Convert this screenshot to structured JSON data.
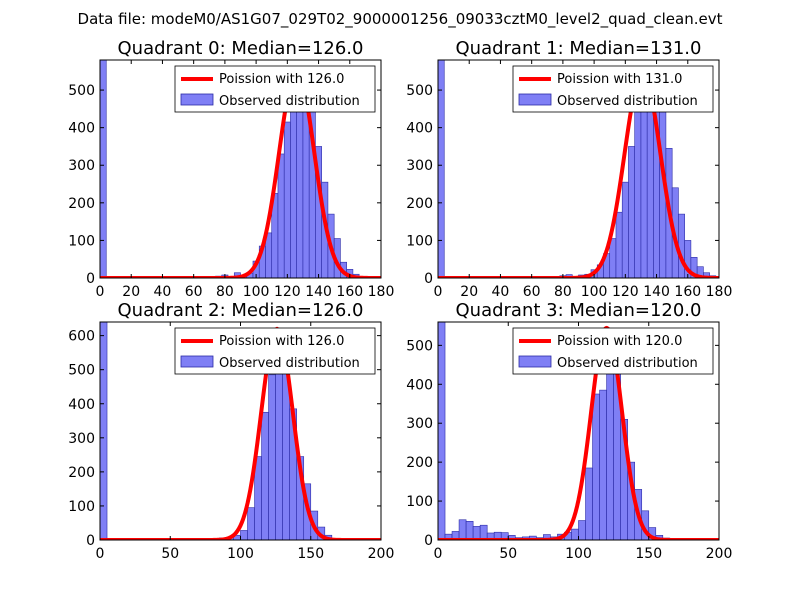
{
  "figure": {
    "suptitle": "Data file: modeM0/AS1G07_029T02_9000001256_09033cztM0_level2_quad_clean.evt"
  },
  "colors": {
    "fit": "#ff0000",
    "bar_fill": "#7f7ff5",
    "bar_edge": "#2b2ba6",
    "axes": "#000000"
  },
  "chart_data": [
    {
      "type": "bar",
      "title": "Quadrant 0: Median=126.0",
      "xlim": [
        0,
        180
      ],
      "ylim": [
        0,
        580
      ],
      "xticks": [
        0,
        20,
        40,
        60,
        80,
        100,
        120,
        140,
        160,
        180
      ],
      "yticks": [
        0,
        100,
        200,
        300,
        400,
        500
      ],
      "legend": [
        "Poission with 126.0",
        "Observed distribution"
      ],
      "legend_loc": "upper right",
      "median": 126.0,
      "fit_scale": 553,
      "bin_width": 4,
      "bins": [
        [
          0,
          580
        ],
        [
          70,
          3
        ],
        [
          74,
          5
        ],
        [
          78,
          8
        ],
        [
          82,
          4
        ],
        [
          86,
          14
        ],
        [
          90,
          7
        ],
        [
          94,
          13
        ],
        [
          98,
          45
        ],
        [
          102,
          85
        ],
        [
          106,
          120
        ],
        [
          110,
          225
        ],
        [
          114,
          330
        ],
        [
          118,
          415
        ],
        [
          122,
          490
        ],
        [
          126,
          510
        ],
        [
          130,
          500
        ],
        [
          134,
          460
        ],
        [
          138,
          350
        ],
        [
          142,
          255
        ],
        [
          146,
          170
        ],
        [
          150,
          105
        ],
        [
          154,
          42
        ],
        [
          158,
          23
        ],
        [
          162,
          10
        ],
        [
          166,
          4
        ],
        [
          170,
          2
        ]
      ]
    },
    {
      "type": "bar",
      "title": "Quadrant 1: Median=131.0",
      "xlim": [
        0,
        180
      ],
      "ylim": [
        0,
        580
      ],
      "xticks": [
        0,
        20,
        40,
        60,
        80,
        100,
        120,
        140,
        160,
        180
      ],
      "yticks": [
        0,
        100,
        200,
        300,
        400,
        500
      ],
      "legend": [
        "Poission with 131.0",
        "Observed distribution"
      ],
      "legend_loc": "upper right",
      "median": 131.0,
      "fit_scale": 548,
      "bin_width": 4,
      "bins": [
        [
          0,
          580
        ],
        [
          74,
          4
        ],
        [
          78,
          6
        ],
        [
          82,
          9
        ],
        [
          86,
          4
        ],
        [
          90,
          8
        ],
        [
          94,
          10
        ],
        [
          98,
          22
        ],
        [
          102,
          35
        ],
        [
          106,
          65
        ],
        [
          110,
          105
        ],
        [
          114,
          175
        ],
        [
          118,
          255
        ],
        [
          122,
          350
        ],
        [
          126,
          470
        ],
        [
          130,
          520
        ],
        [
          134,
          515
        ],
        [
          138,
          490
        ],
        [
          142,
          445
        ],
        [
          146,
          345
        ],
        [
          150,
          240
        ],
        [
          154,
          170
        ],
        [
          158,
          100
        ],
        [
          162,
          55
        ],
        [
          166,
          30
        ],
        [
          170,
          14
        ],
        [
          174,
          6
        ]
      ]
    },
    {
      "type": "bar",
      "title": "Quadrant 2: Median=126.0",
      "xlim": [
        0,
        200
      ],
      "ylim": [
        0,
        640
      ],
      "xticks": [
        0,
        50,
        100,
        150,
        200
      ],
      "yticks": [
        0,
        100,
        200,
        300,
        400,
        500,
        600
      ],
      "legend": [
        "Poission with 126.0",
        "Observed distribution"
      ],
      "legend_loc": "upper right",
      "median": 126.0,
      "fit_scale": 620,
      "bin_width": 5,
      "bins": [
        [
          0,
          640
        ],
        [
          75,
          3
        ],
        [
          80,
          4
        ],
        [
          85,
          6
        ],
        [
          90,
          8
        ],
        [
          95,
          14
        ],
        [
          100,
          28
        ],
        [
          105,
          95
        ],
        [
          110,
          245
        ],
        [
          115,
          375
        ],
        [
          120,
          485
        ],
        [
          125,
          570
        ],
        [
          130,
          495
        ],
        [
          135,
          385
        ],
        [
          140,
          245
        ],
        [
          145,
          165
        ],
        [
          150,
          85
        ],
        [
          155,
          38
        ],
        [
          160,
          14
        ],
        [
          165,
          5
        ]
      ]
    },
    {
      "type": "bar",
      "title": "Quadrant 3: Median=120.0",
      "xlim": [
        0,
        200
      ],
      "ylim": [
        0,
        560
      ],
      "xticks": [
        0,
        50,
        100,
        150,
        200
      ],
      "yticks": [
        0,
        100,
        200,
        300,
        400,
        500
      ],
      "legend": [
        "Poission with 120.0",
        "Observed distribution"
      ],
      "legend_loc": "upper right",
      "median": 120.0,
      "fit_scale": 545,
      "bin_width": 5,
      "bins": [
        [
          0,
          560
        ],
        [
          5,
          15
        ],
        [
          10,
          22
        ],
        [
          15,
          52
        ],
        [
          20,
          48
        ],
        [
          25,
          35
        ],
        [
          30,
          38
        ],
        [
          35,
          18
        ],
        [
          40,
          20
        ],
        [
          45,
          19
        ],
        [
          50,
          12
        ],
        [
          55,
          6
        ],
        [
          60,
          8
        ],
        [
          65,
          10
        ],
        [
          70,
          6
        ],
        [
          75,
          14
        ],
        [
          80,
          8
        ],
        [
          85,
          15
        ],
        [
          90,
          20
        ],
        [
          95,
          28
        ],
        [
          100,
          50
        ],
        [
          105,
          185
        ],
        [
          110,
          375
        ],
        [
          115,
          385
        ],
        [
          120,
          535
        ],
        [
          125,
          430
        ],
        [
          130,
          310
        ],
        [
          135,
          200
        ],
        [
          140,
          130
        ],
        [
          145,
          75
        ],
        [
          150,
          32
        ],
        [
          155,
          12
        ],
        [
          160,
          5
        ]
      ]
    }
  ]
}
